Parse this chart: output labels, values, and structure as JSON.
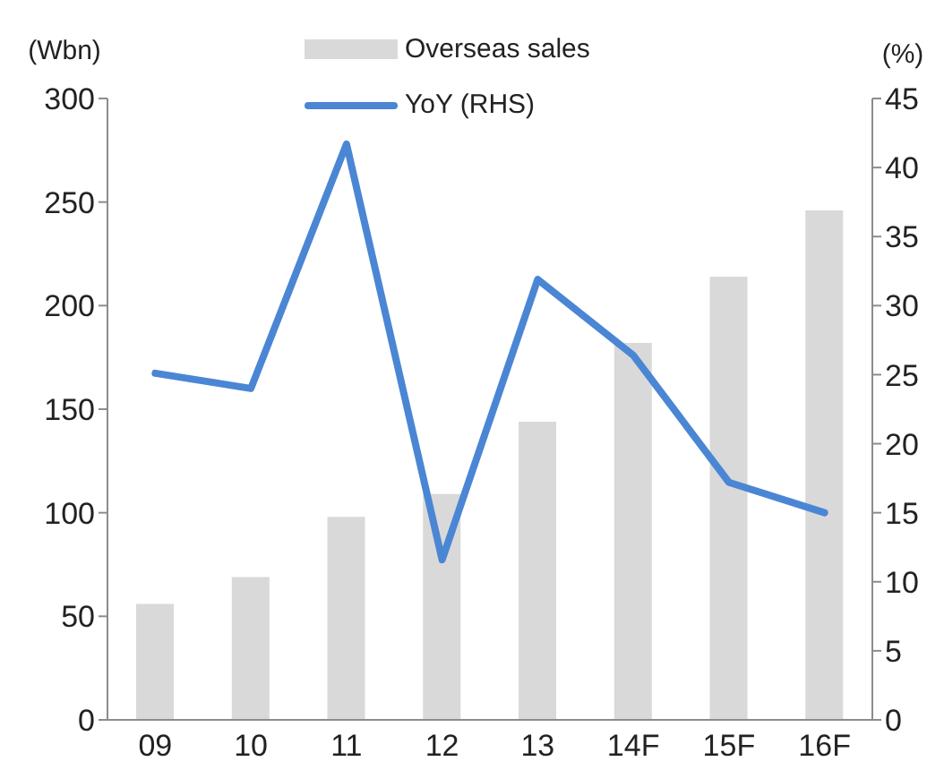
{
  "chart_data": {
    "type": "bar",
    "categories": [
      "09",
      "10",
      "11",
      "12",
      "13",
      "14F",
      "15F",
      "16F"
    ],
    "series": [
      {
        "name": "Overseas sales",
        "color": "#d9d9d9",
        "values": [
          56,
          69,
          98,
          109,
          144,
          182,
          214,
          246
        ]
      },
      {
        "name": "YoY (RHS)",
        "type": "line",
        "axis": "y2",
        "color": "#4a86d4",
        "values": [
          25.1,
          24.0,
          41.7,
          11.6,
          31.9,
          26.4,
          17.2,
          15.0
        ]
      }
    ],
    "ylabel": "(Wbn)",
    "y2label": "(%)",
    "ylim": [
      0,
      300
    ],
    "yticks": [
      0,
      50,
      100,
      150,
      200,
      250,
      300
    ],
    "y2lim": [
      0,
      45
    ],
    "y2ticks": [
      0,
      5,
      10,
      15,
      20,
      25,
      30,
      35,
      40,
      45
    ],
    "legend": "top"
  }
}
